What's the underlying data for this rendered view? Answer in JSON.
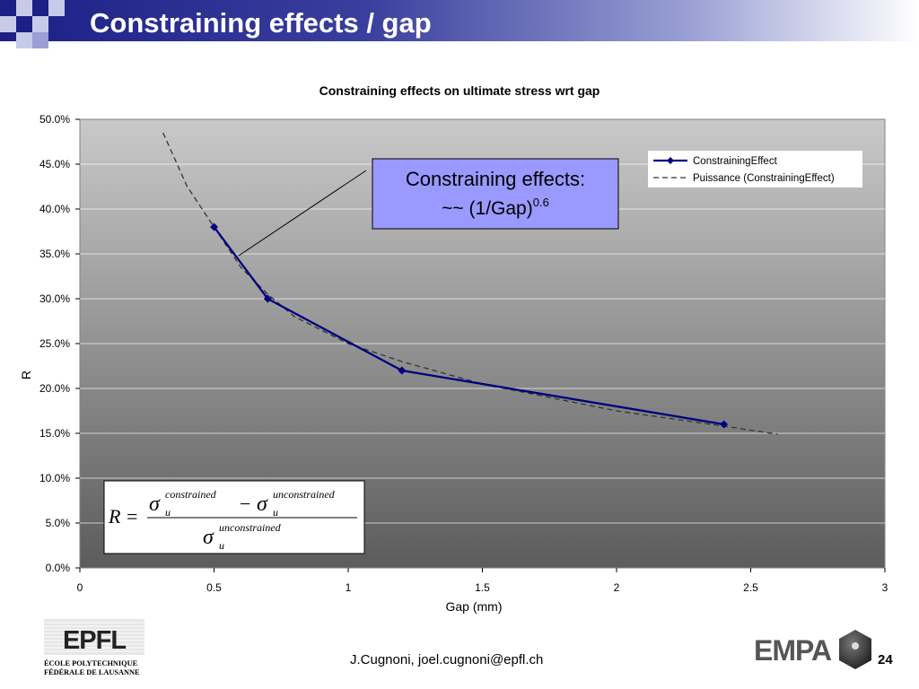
{
  "slide": {
    "title": "Constraining effects / gap",
    "footer_contact": "J.Cugnoni, joel.cugnoni@epfl.ch",
    "page_number": "24"
  },
  "logos": {
    "epfl": {
      "mark": "EPFL",
      "line1": "ÉCOLE POLYTECHNIQUE",
      "line2": "FÉDÉRALE DE LAUSANNE"
    },
    "empa": {
      "mark": "EMPA"
    }
  },
  "colors": {
    "header_dark": "#1c1f86",
    "series": "#000080",
    "fit": "#333333",
    "annotation_fill": "#9999ff"
  },
  "chart_data": {
    "type": "line",
    "title": "Constraining effects on ultimate stress wrt gap",
    "xlabel": "Gap (mm)",
    "ylabel": "R",
    "xlim": [
      0,
      3
    ],
    "ylim": [
      0,
      0.5
    ],
    "x_ticks": [
      "0",
      "0.5",
      "1",
      "1.5",
      "2",
      "2.5",
      "3"
    ],
    "y_ticks": [
      "0.0%",
      "5.0%",
      "10.0%",
      "15.0%",
      "20.0%",
      "25.0%",
      "30.0%",
      "35.0%",
      "40.0%",
      "45.0%",
      "50.0%"
    ],
    "grid": "horizontal",
    "legend_position": "top-right",
    "series": [
      {
        "name": "ConstrainingEffect",
        "style": "solid-diamond",
        "x": [
          0.5,
          0.7,
          1.2,
          2.4
        ],
        "y": [
          0.38,
          0.3,
          0.22,
          0.16
        ]
      },
      {
        "name": "Puissance (ConstrainingEffect)",
        "style": "dashed",
        "x": [
          0.31,
          0.4,
          0.5,
          0.6,
          0.7,
          0.8,
          1.0,
          1.2,
          1.5,
          2.0,
          2.4,
          2.6
        ],
        "y": [
          0.485,
          0.425,
          0.38,
          0.335,
          0.305,
          0.28,
          0.25,
          0.23,
          0.205,
          0.175,
          0.158,
          0.149
        ]
      }
    ],
    "annotations": [
      {
        "line1": "Constraining effects:",
        "line2": "~~ (1/Gap)",
        "exponent": "0.6"
      }
    ],
    "formula": {
      "lhs": "R",
      "sigma": "σ",
      "sub": "u",
      "sup_constrained": "constrained",
      "sup_unconstrained": "unconstrained",
      "equals": "=",
      "minus": "−"
    }
  }
}
